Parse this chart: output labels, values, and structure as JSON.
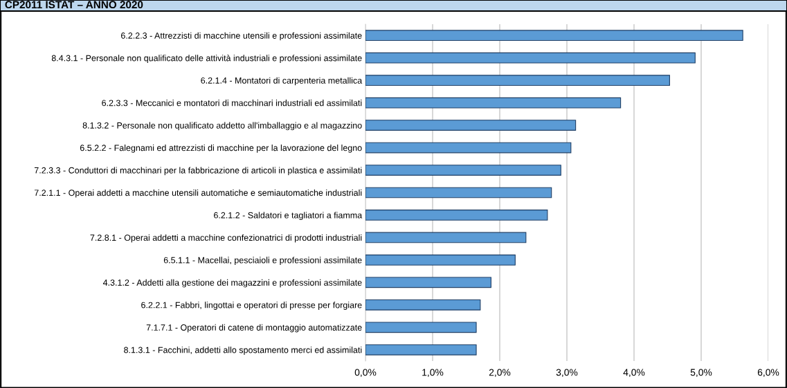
{
  "chart_data": {
    "type": "bar",
    "orientation": "horizontal",
    "title": "CP2011 ISTAT – ANNO 2020",
    "categories": [
      "6.2.2.3 - Attrezzisti di macchine utensili e professioni assimilate",
      "8.4.3.1 - Personale non qualificato delle attività industriali e professioni assimilate",
      "6.2.1.4 - Montatori di carpenteria metallica",
      "6.2.3.3 - Meccanici e montatori di macchinari industriali ed assimilati",
      "8.1.3.2 - Personale non qualificato addetto all'imballaggio e al magazzino",
      "6.5.2.2 - Falegnami ed attrezzisti di macchine per la lavorazione del legno",
      "7.2.3.3 - Conduttori di macchinari per la fabbricazione di articoli in plastica e assimilati",
      "7.2.1.1 - Operai addetti a macchine utensili automatiche e semiautomatiche industriali",
      "6.2.1.2 - Saldatori e tagliatori a fiamma",
      "7.2.8.1 - Operai addetti a macchine confezionatrici di prodotti industriali",
      "6.5.1.1 - Macellai, pesciaioli e professioni assimilate",
      "4.3.1.2 - Addetti alla gestione dei magazzini e professioni assimilate",
      "6.2.2.1 - Fabbri, lingottai e operatori di presse per forgiare",
      "7.1.7.1 - Operatori di catene di montaggio automatizzate",
      "8.1.3.1 - Facchini, addetti allo spostamento merci ed assimilati"
    ],
    "values": [
      5.62,
      4.91,
      4.53,
      3.8,
      3.13,
      3.06,
      2.91,
      2.77,
      2.71,
      2.39,
      2.23,
      1.87,
      1.71,
      1.65,
      1.65
    ],
    "color": "#5b9bd5",
    "xlim": [
      0,
      6
    ],
    "xticks": [
      {
        "value": 0,
        "label": "0,0%"
      },
      {
        "value": 1,
        "label": "1,0%"
      },
      {
        "value": 2,
        "label": "2,0%"
      },
      {
        "value": 3,
        "label": "3,0%"
      },
      {
        "value": 4,
        "label": "4,0%"
      },
      {
        "value": 5,
        "label": "5,0%"
      },
      {
        "value": 6,
        "label": "6,0%"
      }
    ],
    "grid": "x",
    "legend": false
  }
}
